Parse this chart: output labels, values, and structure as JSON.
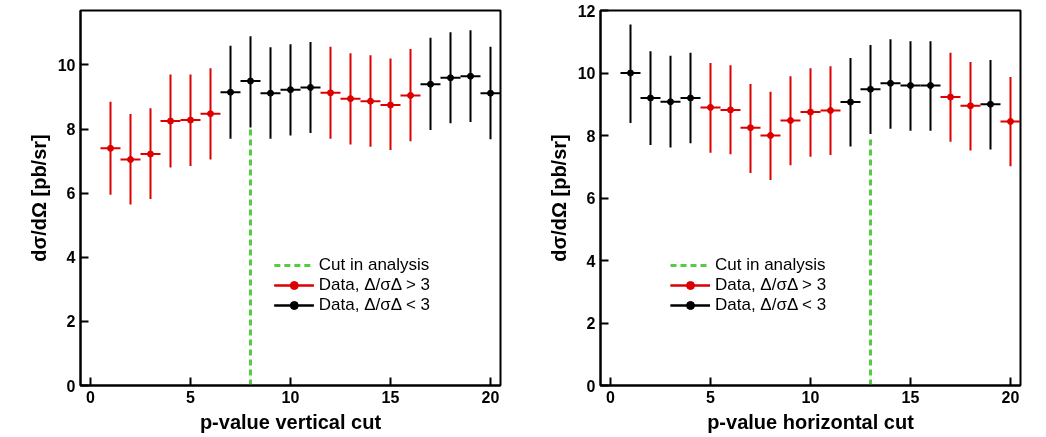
{
  "chart_data": [
    {
      "type": "scatter",
      "xlabel": "p-value vertical cut",
      "ylabel": "dσ/dΩ [pb/sr]",
      "xlim": [
        -0.5,
        20.5
      ],
      "ylim": [
        0,
        11.7
      ],
      "xticks": [
        0,
        5,
        10,
        15,
        20
      ],
      "yticks": [
        0,
        2,
        4,
        6,
        8,
        10
      ],
      "grid": false,
      "legend": "bottom right",
      "series": [
        {
          "name": "Cut in analysis",
          "type": "line",
          "line_style": "dashed",
          "color": "#55cc44",
          "x": [
            8,
            8
          ],
          "values": [
            0,
            8.0
          ]
        },
        {
          "name": "Data, Δ/σΔ > 3",
          "marker": "circle",
          "color": "#dd0000",
          "x": [
            1,
            2,
            3,
            4,
            5,
            6,
            12,
            13,
            14,
            15,
            16
          ],
          "values": [
            7.4,
            7.05,
            7.22,
            8.25,
            8.28,
            8.48,
            9.13,
            8.95,
            8.87,
            8.75,
            9.05
          ],
          "errors": [
            [
              5.95,
              8.85
            ],
            [
              5.65,
              8.47
            ],
            [
              5.82,
              8.65
            ],
            [
              6.8,
              9.7
            ],
            [
              6.85,
              9.7
            ],
            [
              7.05,
              9.9
            ],
            [
              7.7,
              10.57
            ],
            [
              7.52,
              10.37
            ],
            [
              7.45,
              10.3
            ],
            [
              7.35,
              10.2
            ],
            [
              7.62,
              10.5
            ]
          ],
          "xerrors": [
            0.5,
            0.5,
            0.5,
            0.5,
            0.5,
            0.5,
            0.5,
            0.5,
            0.5,
            0.5,
            0.5
          ]
        },
        {
          "name": "Data, Δ/σΔ < 3",
          "marker": "circle",
          "color": "#000000",
          "x": [
            7,
            8,
            9,
            10,
            11,
            17,
            18,
            19,
            20
          ],
          "values": [
            9.15,
            9.5,
            9.12,
            9.23,
            9.3,
            9.4,
            9.6,
            9.65,
            9.12
          ],
          "errors": [
            [
              7.7,
              10.6
            ],
            [
              8.05,
              10.9
            ],
            [
              7.7,
              10.55
            ],
            [
              7.8,
              10.65
            ],
            [
              7.88,
              10.72
            ],
            [
              7.97,
              10.85
            ],
            [
              8.18,
              11.02
            ],
            [
              8.22,
              11.08
            ],
            [
              7.68,
              10.57
            ]
          ],
          "xerrors": [
            0.5,
            0.5,
            0.5,
            0.5,
            0.5,
            0.5,
            0.5,
            0.5,
            0.5
          ]
        }
      ]
    },
    {
      "type": "scatter",
      "xlabel": "p-value horizontal cut",
      "ylabel": "dσ/dΩ [pb/sr]",
      "xlim": [
        -0.5,
        20.5
      ],
      "ylim": [
        0,
        12
      ],
      "xticks": [
        0,
        5,
        10,
        15,
        20
      ],
      "yticks": [
        0,
        2,
        4,
        6,
        8,
        10,
        12
      ],
      "grid": false,
      "legend": "bottom left",
      "series": [
        {
          "name": "Cut in analysis",
          "type": "line",
          "line_style": "dashed",
          "color": "#55cc44",
          "x": [
            13,
            13
          ],
          "values": [
            0,
            7.9
          ]
        },
        {
          "name": "Data, Δ/σΔ > 3",
          "marker": "circle",
          "color": "#dd0000",
          "x": [
            5,
            6,
            7,
            8,
            9,
            10,
            11,
            17,
            18,
            20
          ],
          "values": [
            8.9,
            8.82,
            8.25,
            8.0,
            8.48,
            8.75,
            8.8,
            9.23,
            8.95,
            8.45
          ],
          "errors": [
            [
              7.45,
              10.32
            ],
            [
              7.4,
              10.25
            ],
            [
              6.8,
              9.65
            ],
            [
              6.58,
              9.4
            ],
            [
              7.05,
              9.9
            ],
            [
              7.32,
              10.15
            ],
            [
              7.38,
              10.22
            ],
            [
              7.8,
              10.65
            ],
            [
              7.52,
              10.35
            ],
            [
              7.02,
              9.87
            ]
          ],
          "xerrors": [
            0.5,
            0.5,
            0.5,
            0.5,
            0.5,
            0.5,
            0.5,
            0.5,
            0.5,
            0.5
          ]
        },
        {
          "name": "Data, Δ/σΔ < 3",
          "marker": "circle",
          "color": "#000000",
          "x": [
            1,
            2,
            3,
            4,
            12,
            13,
            14,
            15,
            16,
            19
          ],
          "values": [
            10.0,
            9.2,
            9.08,
            9.2,
            9.07,
            9.48,
            9.67,
            9.6,
            9.6,
            9.0
          ],
          "errors": [
            [
              8.4,
              11.55
            ],
            [
              7.7,
              10.7
            ],
            [
              7.62,
              10.55
            ],
            [
              7.75,
              10.65
            ],
            [
              7.65,
              10.48
            ],
            [
              8.05,
              10.9
            ],
            [
              8.22,
              11.08
            ],
            [
              8.15,
              11.02
            ],
            [
              8.15,
              11.02
            ],
            [
              7.55,
              10.42
            ]
          ],
          "xerrors": [
            0.5,
            0.5,
            0.5,
            0.5,
            0.5,
            0.5,
            0.5,
            0.5,
            0.5,
            0.5
          ]
        }
      ]
    }
  ]
}
